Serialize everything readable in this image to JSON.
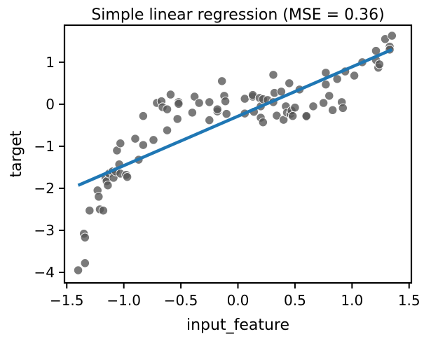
{
  "chart_data": {
    "type": "scatter",
    "title": "Simple linear regression (MSE = 0.36)",
    "xlabel": "input_feature",
    "ylabel": "target",
    "xlim": [
      -1.52,
      1.52
    ],
    "ylim": [
      -4.25,
      1.88
    ],
    "xticks": [
      -1.5,
      -1.0,
      -0.5,
      0.0,
      0.5,
      1.0,
      1.5
    ],
    "xtick_labels": [
      "−1.5",
      "−1.0",
      "−0.5",
      "0.0",
      "0.5",
      "1.0",
      "1.5"
    ],
    "yticks": [
      -4,
      -3,
      -2,
      -1,
      0,
      1
    ],
    "ytick_labels": [
      "−4",
      "−3",
      "−2",
      "−1",
      "0",
      "1"
    ],
    "grid": false,
    "colors": {
      "points": "#555555",
      "point_edge": "#ffffff",
      "line": "#1f77b4"
    },
    "series": [
      {
        "kind": "scatter",
        "points": [
          [
            -1.4,
            -3.95
          ],
          [
            -1.35,
            -3.08
          ],
          [
            -1.34,
            -3.17
          ],
          [
            -1.34,
            -3.78
          ],
          [
            -1.3,
            -2.53
          ],
          [
            -1.23,
            -2.05
          ],
          [
            -1.22,
            -2.2
          ],
          [
            -1.21,
            -2.5
          ],
          [
            -1.18,
            -2.53
          ],
          [
            -1.16,
            -1.75
          ],
          [
            -1.15,
            -1.83
          ],
          [
            -1.14,
            -1.93
          ],
          [
            -1.13,
            -1.65
          ],
          [
            -1.1,
            -1.6
          ],
          [
            -1.09,
            -1.75
          ],
          [
            -1.07,
            -1.6
          ],
          [
            -1.06,
            -1.1
          ],
          [
            -1.04,
            -1.43
          ],
          [
            -1.03,
            -1.65
          ],
          [
            -1.03,
            -0.93
          ],
          [
            -0.98,
            -1.68
          ],
          [
            -0.97,
            -1.73
          ],
          [
            -0.9,
            -0.82
          ],
          [
            -0.87,
            -1.32
          ],
          [
            -0.83,
            -0.97
          ],
          [
            -0.83,
            -0.28
          ],
          [
            -0.74,
            -0.85
          ],
          [
            -0.71,
            0.03
          ],
          [
            -0.67,
            0.07
          ],
          [
            -0.66,
            -0.07
          ],
          [
            -0.62,
            -0.62
          ],
          [
            -0.62,
            -0.12
          ],
          [
            -0.59,
            0.23
          ],
          [
            -0.53,
            -0.35
          ],
          [
            -0.52,
            0.05
          ],
          [
            -0.52,
            0.01
          ],
          [
            -0.4,
            -0.2
          ],
          [
            -0.38,
            0.18
          ],
          [
            -0.34,
            0.03
          ],
          [
            -0.25,
            -0.38
          ],
          [
            -0.25,
            0.05
          ],
          [
            -0.18,
            -0.17
          ],
          [
            -0.18,
            -0.12
          ],
          [
            -0.14,
            0.55
          ],
          [
            -0.12,
            0.2
          ],
          [
            -0.11,
            0.07
          ],
          [
            -0.1,
            -0.23
          ],
          [
            0.06,
            -0.22
          ],
          [
            0.06,
            0.13
          ],
          [
            0.13,
            0.18
          ],
          [
            0.13,
            0.22
          ],
          [
            0.14,
            -0.18
          ],
          [
            0.19,
            0.15
          ],
          [
            0.2,
            -0.05
          ],
          [
            0.2,
            -0.32
          ],
          [
            0.22,
            -0.43
          ],
          [
            0.22,
            0.12
          ],
          [
            0.26,
            0.1
          ],
          [
            0.31,
            0.05
          ],
          [
            0.31,
            0.7
          ],
          [
            0.32,
            0.27
          ],
          [
            0.34,
            -0.27
          ],
          [
            0.38,
            0.3
          ],
          [
            0.4,
            -0.37
          ],
          [
            0.42,
            -0.05
          ],
          [
            0.43,
            -0.2
          ],
          [
            0.45,
            0.5
          ],
          [
            0.46,
            -0.23
          ],
          [
            0.47,
            -0.15
          ],
          [
            0.48,
            -0.28
          ],
          [
            0.5,
            -0.08
          ],
          [
            0.54,
            0.35
          ],
          [
            0.6,
            -0.3
          ],
          [
            0.6,
            -0.28
          ],
          [
            0.66,
            -0.05
          ],
          [
            0.75,
            0.03
          ],
          [
            0.77,
            0.75
          ],
          [
            0.77,
            0.47
          ],
          [
            0.8,
            0.2
          ],
          [
            0.83,
            -0.14
          ],
          [
            0.87,
            0.6
          ],
          [
            0.91,
            0.05
          ],
          [
            0.92,
            -0.09
          ],
          [
            0.94,
            0.78
          ],
          [
            1.02,
            0.68
          ],
          [
            1.09,
            1.0
          ],
          [
            1.21,
            1.27
          ],
          [
            1.21,
            1.05
          ],
          [
            1.23,
            0.87
          ],
          [
            1.24,
            0.95
          ],
          [
            1.29,
            1.55
          ],
          [
            1.33,
            1.37
          ],
          [
            1.33,
            1.3
          ],
          [
            1.35,
            1.63
          ]
        ]
      },
      {
        "kind": "line",
        "x": [
          -1.4,
          1.35
        ],
        "y": [
          -1.93,
          1.3
        ]
      }
    ]
  }
}
